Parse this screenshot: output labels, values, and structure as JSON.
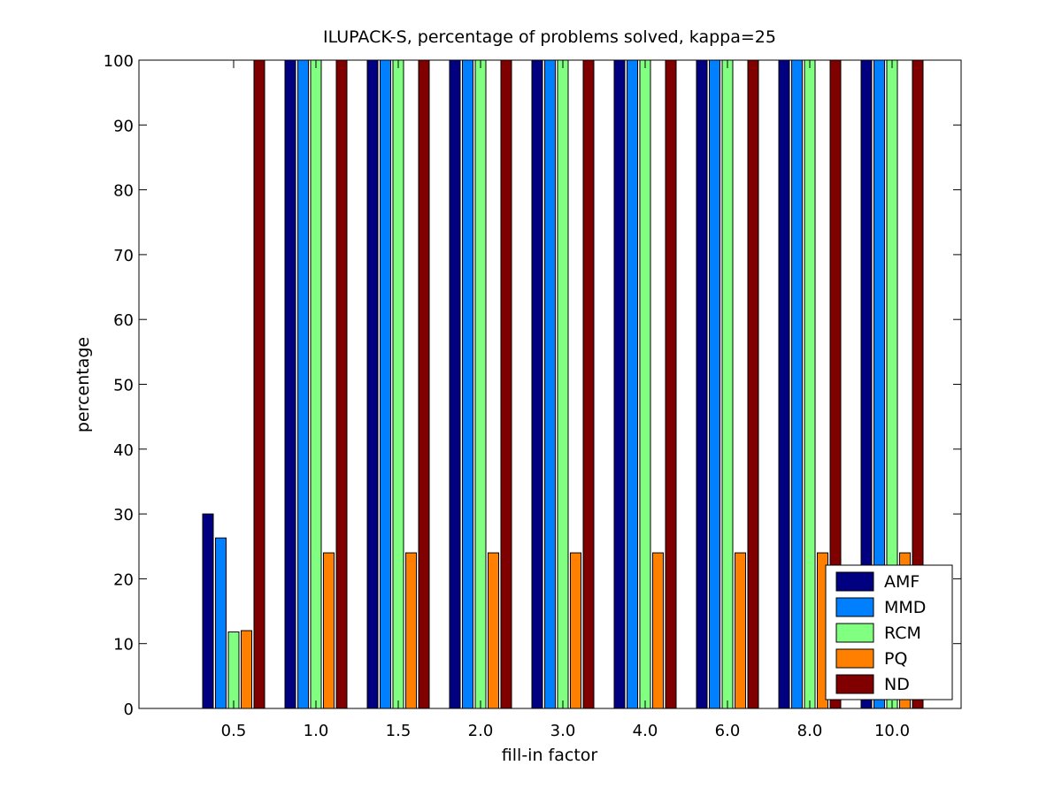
{
  "chart_data": {
    "type": "bar",
    "title": "ILUPACK-S, percentage of problems solved, kappa=25",
    "xlabel": "fill-in factor",
    "ylabel": "percentage",
    "ylim": [
      0,
      100
    ],
    "yticks": [
      "0",
      "10",
      "20",
      "30",
      "40",
      "50",
      "60",
      "70",
      "80",
      "90",
      "100"
    ],
    "categories": [
      "0.5",
      "1.0",
      "1.5",
      "2.0",
      "3.0",
      "4.0",
      "6.0",
      "8.0",
      "10.0"
    ],
    "grid": false,
    "legend_position": "bottom-right",
    "series": [
      {
        "name": "AMF",
        "color": "#000080",
        "values": [
          30,
          100,
          100,
          100,
          100,
          100,
          100,
          100,
          100
        ]
      },
      {
        "name": "MMD",
        "color": "#0080ff",
        "values": [
          26.3,
          100,
          100,
          100,
          100,
          100,
          100,
          100,
          100
        ]
      },
      {
        "name": "RCM",
        "color": "#80ff80",
        "values": [
          11.8,
          100,
          100,
          100,
          100,
          100,
          100,
          100,
          100
        ]
      },
      {
        "name": "PQ",
        "color": "#ff8000",
        "values": [
          12,
          24,
          24,
          24,
          24,
          24,
          24,
          24,
          24
        ]
      },
      {
        "name": "ND",
        "color": "#800000",
        "values": [
          100,
          100,
          100,
          100,
          100,
          100,
          100,
          100,
          100
        ]
      }
    ]
  }
}
